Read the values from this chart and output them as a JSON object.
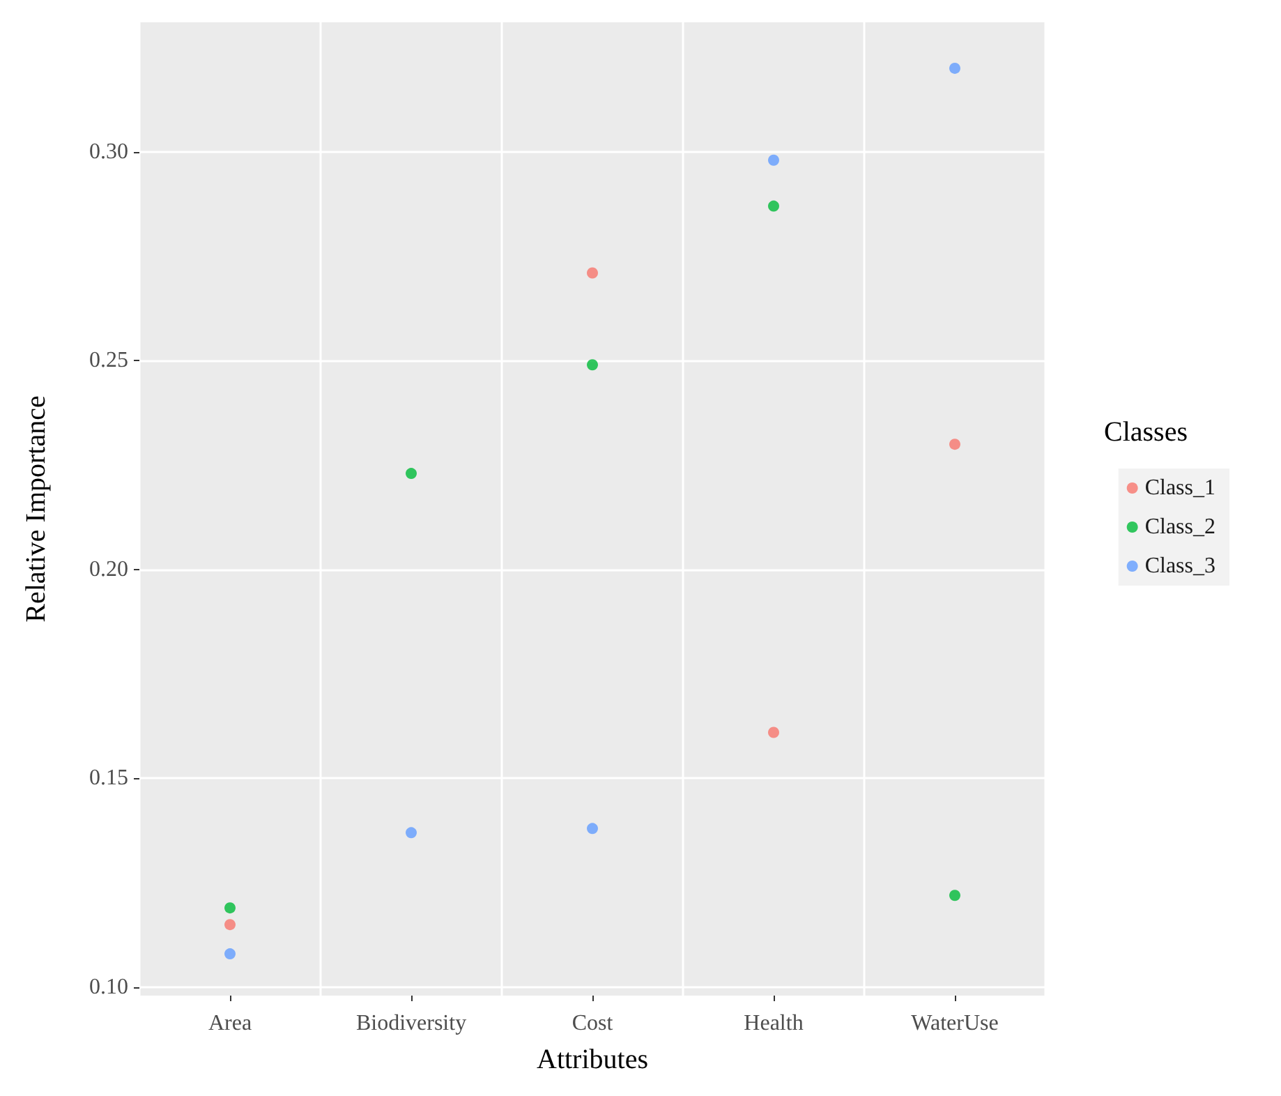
{
  "chart_data": {
    "type": "scatter",
    "xlabel": "Attributes",
    "ylabel": "Relative Importance",
    "legend_title": "Classes",
    "categories": [
      "Area",
      "Biodiversity",
      "Cost",
      "Health",
      "WaterUse"
    ],
    "series": [
      {
        "name": "Class_1",
        "color": "#f8766d",
        "values": [
          0.115,
          null,
          0.271,
          0.161,
          0.23
        ]
      },
      {
        "name": "Class_2",
        "color": "#00ba38",
        "values": [
          0.119,
          0.223,
          0.249,
          0.287,
          0.122
        ]
      },
      {
        "name": "Class_3",
        "color": "#619cff",
        "values": [
          0.108,
          0.137,
          0.138,
          0.298,
          0.32
        ]
      }
    ],
    "ylim": [
      0.098,
      0.331
    ],
    "yticks": [
      {
        "value": 0.1,
        "label": "0.10"
      },
      {
        "value": 0.15,
        "label": "0.15"
      },
      {
        "value": 0.2,
        "label": "0.20"
      },
      {
        "value": 0.25,
        "label": "0.25"
      },
      {
        "value": 0.3,
        "label": "0.30"
      }
    ],
    "grid": true,
    "legend": "right",
    "marker": "circle"
  }
}
